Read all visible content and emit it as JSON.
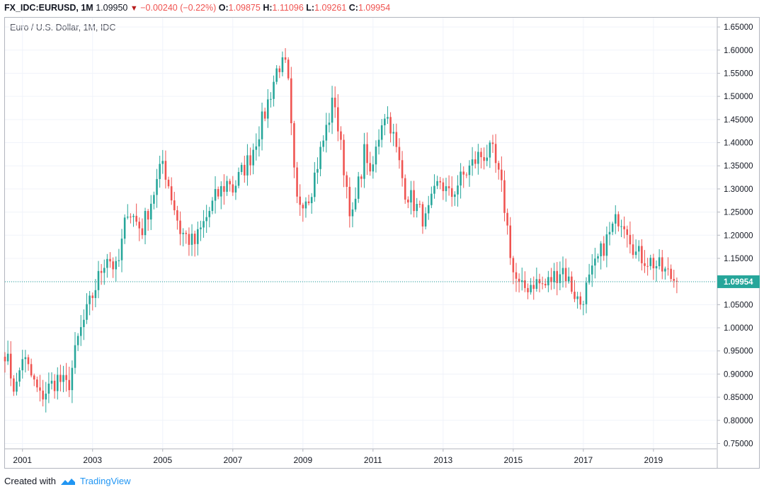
{
  "header": {
    "symbol": "FX_IDC:EURUSD, 1M",
    "last": "1.09950",
    "change": "−0.00240 (−0.22%)",
    "o_label": "O:",
    "o_val": "1.09875",
    "h_label": "H:",
    "h_val": "1.11096",
    "l_label": "L:",
    "l_val": "1.09261",
    "c_label": "C:",
    "c_val": "1.09954"
  },
  "footer": {
    "created_with": "Created with",
    "brand": "TradingView"
  },
  "colors": {
    "up": "#26a69a",
    "down": "#ef5350",
    "grid": "#f0f3fa",
    "last_line": "#26a69a"
  },
  "chart_data": {
    "type": "candlestick",
    "title": "Euro / U.S. Dollar, 1M, IDC",
    "y_ticks": [
      "1.65000",
      "1.60000",
      "1.55000",
      "1.50000",
      "1.45000",
      "1.40000",
      "1.35000",
      "1.30000",
      "1.25000",
      "1.20000",
      "1.15000",
      "1.10000",
      "1.05000",
      "1.00000",
      "0.95000",
      "0.90000",
      "0.85000",
      "0.80000",
      "0.75000"
    ],
    "x_ticks": [
      "2001",
      "2003",
      "2005",
      "2007",
      "2009",
      "2011",
      "2013",
      "2015",
      "2017",
      "2019"
    ],
    "ylim": [
      0.74,
      1.67
    ],
    "last_value": "1.09954",
    "grid": true,
    "start_year": 2000.5,
    "end_year": 2019.67,
    "anchors": [
      [
        2000.5,
        0.95
      ],
      [
        2000.8,
        0.86
      ],
      [
        2001.0,
        0.94
      ],
      [
        2001.5,
        0.85
      ],
      [
        2002.0,
        0.89
      ],
      [
        2002.3,
        0.87
      ],
      [
        2002.6,
        0.98
      ],
      [
        2003.0,
        1.07
      ],
      [
        2003.4,
        1.16
      ],
      [
        2003.7,
        1.12
      ],
      [
        2004.0,
        1.26
      ],
      [
        2004.4,
        1.21
      ],
      [
        2004.9,
        1.33
      ],
      [
        2005.0,
        1.36
      ],
      [
        2005.5,
        1.21
      ],
      [
        2005.9,
        1.18
      ],
      [
        2006.5,
        1.28
      ],
      [
        2006.9,
        1.32
      ],
      [
        2007.0,
        1.3
      ],
      [
        2007.5,
        1.37
      ],
      [
        2007.9,
        1.46
      ],
      [
        2008.3,
        1.57
      ],
      [
        2008.55,
        1.56
      ],
      [
        2008.8,
        1.27
      ],
      [
        2009.2,
        1.29
      ],
      [
        2009.9,
        1.5
      ],
      [
        2010.0,
        1.43
      ],
      [
        2010.4,
        1.23
      ],
      [
        2010.8,
        1.4
      ],
      [
        2010.9,
        1.31
      ],
      [
        2011.3,
        1.47
      ],
      [
        2011.5,
        1.44
      ],
      [
        2011.9,
        1.3
      ],
      [
        2012.5,
        1.23
      ],
      [
        2012.9,
        1.32
      ],
      [
        2013.2,
        1.28
      ],
      [
        2013.4,
        1.31
      ],
      [
        2014.0,
        1.37
      ],
      [
        2014.4,
        1.38
      ],
      [
        2014.7,
        1.29
      ],
      [
        2015.0,
        1.12
      ],
      [
        2015.2,
        1.08
      ],
      [
        2015.6,
        1.1
      ],
      [
        2015.9,
        1.09
      ],
      [
        2016.4,
        1.13
      ],
      [
        2016.9,
        1.05
      ],
      [
        2017.0,
        1.07
      ],
      [
        2017.6,
        1.18
      ],
      [
        2018.0,
        1.24
      ],
      [
        2018.2,
        1.23
      ],
      [
        2018.5,
        1.16
      ],
      [
        2019.0,
        1.14
      ],
      [
        2019.67,
        1.1
      ]
    ]
  }
}
